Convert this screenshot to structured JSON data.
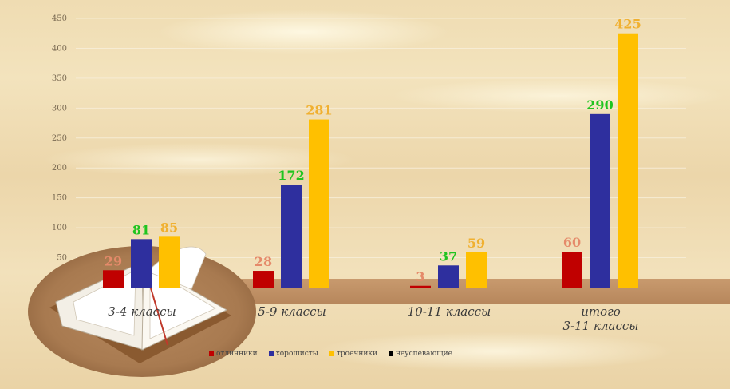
{
  "chart_data": {
    "type": "bar",
    "categories": [
      "3-4 классы",
      "5-9 классы",
      "10-11 классы",
      "итого 3-11 классы"
    ],
    "series": [
      {
        "name": "отличники",
        "color": "#c00000",
        "label_color": "#e58a6a",
        "values": [
          29,
          28,
          3,
          60
        ]
      },
      {
        "name": "хорошисты",
        "color": "#2e2f9e",
        "label_color": "#1fc41f",
        "values": [
          81,
          172,
          37,
          290
        ]
      },
      {
        "name": "троечники",
        "color": "#ffc000",
        "label_color": "#f0b030",
        "values": [
          85,
          281,
          59,
          425
        ]
      },
      {
        "name": "неуспевающие",
        "color": "#000000",
        "label_color": "#000000",
        "values": [
          0,
          0,
          0,
          0
        ]
      }
    ],
    "ylim": [
      0,
      450
    ],
    "yticks": [
      50,
      100,
      150,
      200,
      250,
      300,
      350,
      400,
      450
    ],
    "grid": true,
    "legend_position": "bottom"
  }
}
